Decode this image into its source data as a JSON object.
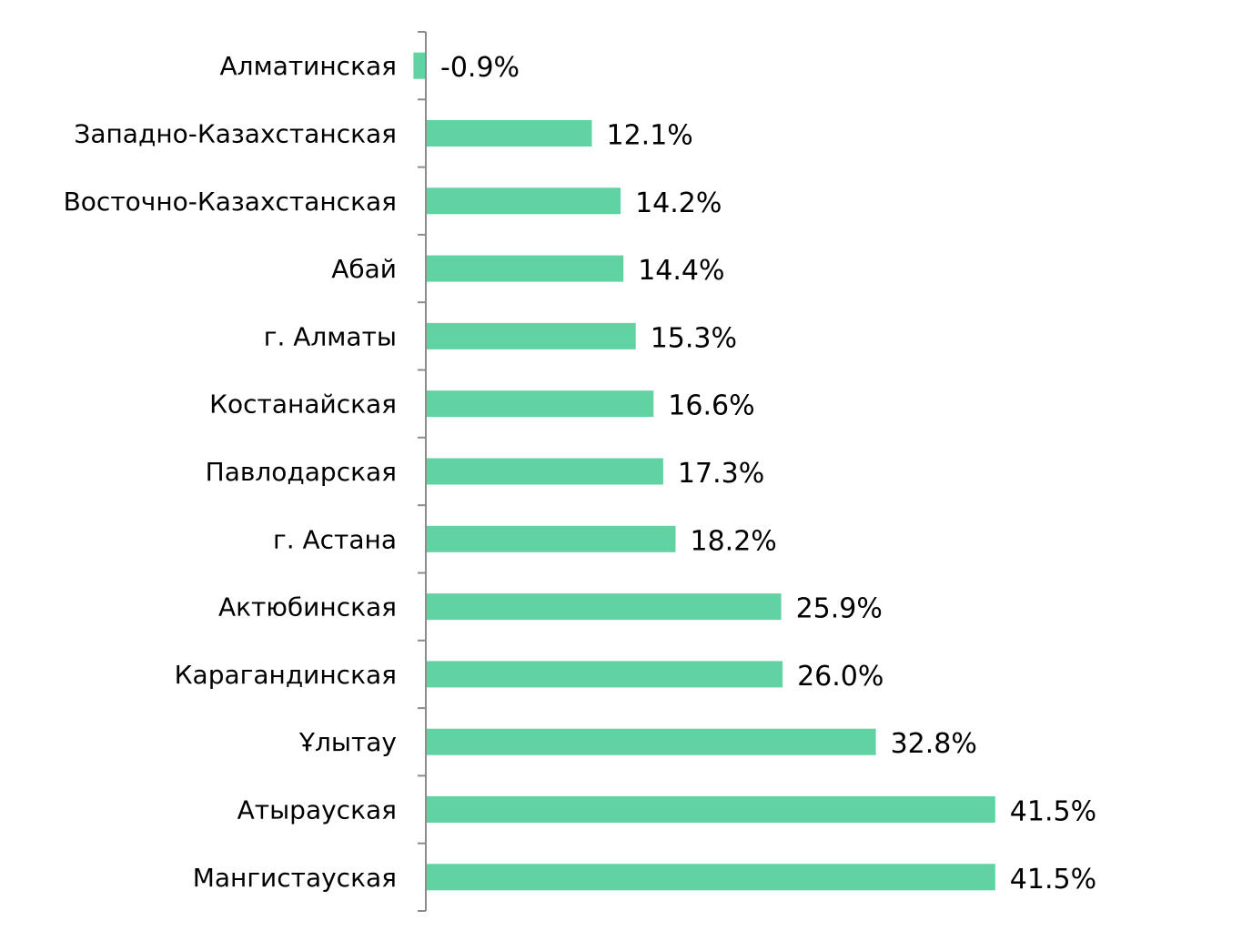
{
  "chart_data": {
    "type": "bar",
    "orientation": "horizontal",
    "categories": [
      "Алматинская",
      "Западно-Казахстанская",
      "Восточно-Казахстанская",
      "Абай",
      "г. Алматы",
      "Костанайская",
      "Павлодарская",
      "г. Астана",
      "Актюбинская",
      "Карагандинская",
      "Ұлытау",
      "Атырауская",
      "Мангистауская"
    ],
    "values": [
      -0.9,
      12.1,
      14.2,
      14.4,
      15.3,
      16.6,
      17.3,
      18.2,
      25.9,
      26.0,
      32.8,
      41.5,
      41.5
    ],
    "value_labels": [
      "-0.9%",
      "12.1%",
      "14.2%",
      "14.4%",
      "15.3%",
      "16.6%",
      "17.3%",
      "18.2%",
      "25.9%",
      "26.0%",
      "32.8%",
      "41.5%",
      "41.5%"
    ],
    "value_unit": "%",
    "bar_color": "#61D2A2",
    "axis_color": "#8C8C8C",
    "grid": false,
    "legend": "none"
  }
}
